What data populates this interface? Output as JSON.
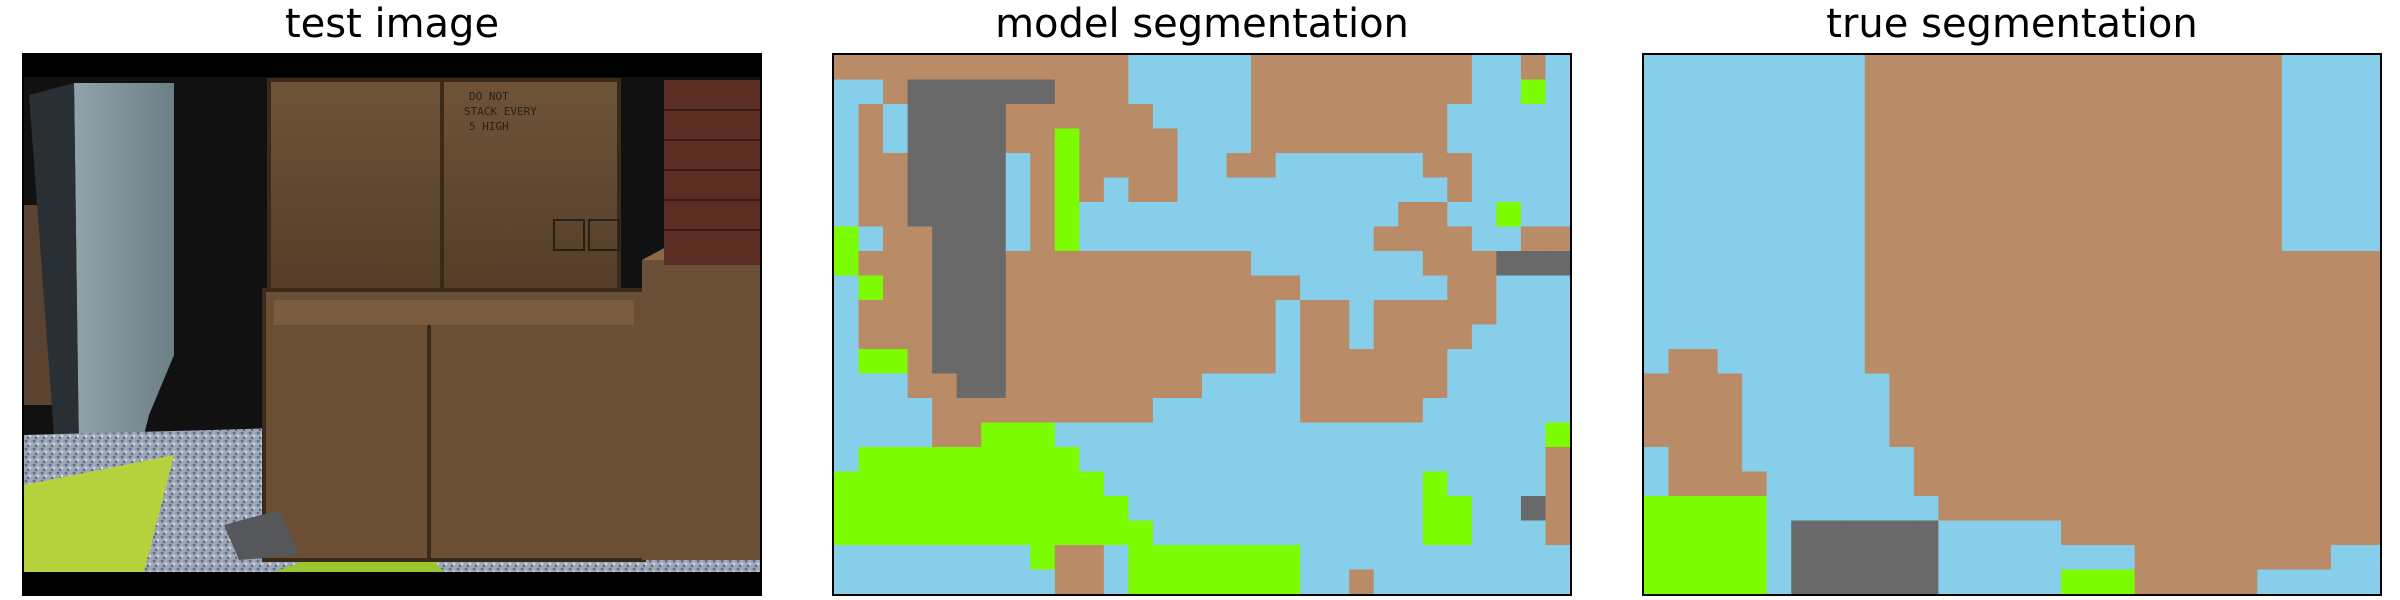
{
  "panels": [
    {
      "title": "test image"
    },
    {
      "title": "model segmentation"
    },
    {
      "title": "true segmentation"
    }
  ],
  "photo_stencil_text": "DO NOT\nSTACK EVERY\n5 HIGH",
  "legend_colors": {
    "wood": "#b98b66",
    "wall": "#87ceeb",
    "floor_green": "#7cfc00",
    "dark_gray": "#696969"
  },
  "model_grid": [
    "BBBBBBBBBBBBSSSSSBBBBBBBBBSSBS",
    "SSBDDDDDDBBBSSSSSBBBBBBBBBSSGS",
    "SBSDDDDBBBBBBSSSSBBBBBBBBSSSSS",
    "SBSDDDDBBGBBBBSSSBBBBBBBBSSSSS",
    "SBBDDDDSBGBBBBSSBBSSSSSSBBSSSS",
    "SBBDDDDSBGBSBBSSSSSSSSSSSBSSSS",
    "SBBDDDDSBGSSSSSSSSSSSSSBBSSGSS",
    "GSBBDDDSBGSSSSSSSSSSSSBBBBSSBB",
    "GBBBDDDBBBBBBBBBBSSSSSSSBBBDDD",
    "SGBBDDDBBBBBBBBBBBBSSSSSSBBSSS",
    "SBBBDDDBBBBBBBBBBBSBBSBBBBBSSS",
    "SBBBDDDBBBBBBBBBBBSBBSBBBBSSSS",
    "SGGBDDDBBBBBBBBBBBSBBBBBBSSSSS",
    "SSSBBDDBBBBBBBBSSSSBBBBBBSSSSS",
    "SSSSBBBBBBBBBSSSSSSBBBBBSSSSSS",
    "SSSSBBGGGSSSSSSSSSSSSSSSSSSSSG",
    "SGGGGGGGGGSSSSSSSSSSSSSSSSSSSB",
    "GGGGGGGGGGGSSSSSSSSSSSSSGSSSSB",
    "GGGGGGGGGGGGSSSSSSSSSSSSGGSSDB",
    "GGGGGGGGGGGGGSSSSSSSSSSSGGSSSB",
    "SSSSSSSSGBBSGGGGGGGSSSSSSSSSSS",
    "SSSSSSSSSBBSGGGGGGGSSBSSSSSSSS"
  ],
  "true_grid": [
    "SSSSSSSSSBBBBBBBBBBBBBBBBBSSSS",
    "SSSSSSSSSBBBBBBBBBBBBBBBBBSSSS",
    "SSSSSSSSSBBBBBBBBBBBBBBBBBSSSS",
    "SSSSSSSSSBBBBBBBBBBBBBBBBBSSSS",
    "SSSSSSSSSBBBBBBBBBBBBBBBBBSSSS",
    "SSSSSSSSSBBBBBBBBBBBBBBBBBSSSS",
    "SSSSSSSSSBBBBBBBBBBBBBBBBBSSSS",
    "SSSSSSSSSBBBBBBBBBBBBBBBBBSSSS",
    "SSSSSSSSSBBBBBBBBBBBBBBBBBBBBB",
    "SSSSSSSSSBBBBBBBBBBBBBBBBBBBBB",
    "SSSSSSSSSBBBBBBBBBBBBBBBBBBBBB",
    "SSSSSSSSSBBBBBBBBBBBBBBBBBBBBB",
    "SBBSSSSSSBBBBBBBBBBBBBBBBBBBBB",
    "BBBBSSSSSSBBBBBBBBBBBBBBBBBBBB",
    "BBBBSSSSSSBBBBBBBBBBBBBBBBBBBB",
    "BBBBSSSSSSBBBBBBBBBBBBBBBBBBBB",
    "SBBBSSSSSSSBBBBBBBBBBBBBBBBBBB",
    "SBBBBSSSSSSBBBBBBBBBBBBBBBBBBB",
    "GGGGGSSSSSSSBBBBBBBBBBBBBBBBBB",
    "GGGGGSDDDDDDSSSSSBBBBBBBBBBBBB",
    "GGGGGSDDDDDDSSSSSSSSBBBBBBBBSS",
    "GGGGGSDDDDDDSSSSSGGGBBBBBSSSSS"
  ]
}
